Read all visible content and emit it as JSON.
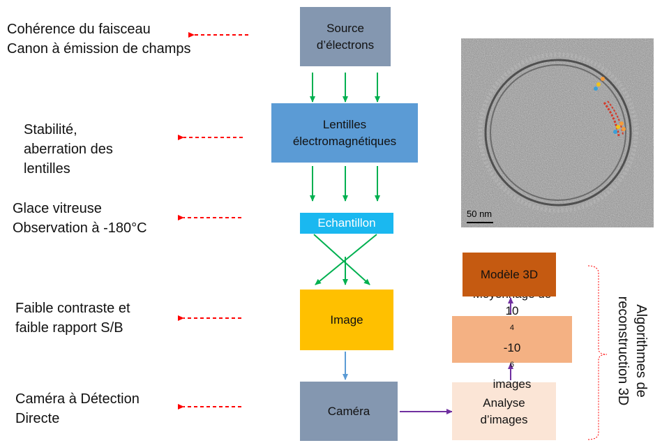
{
  "annotations": {
    "coherence": [
      "Cohérence du faisceau",
      "Canon à émission de champs"
    ],
    "stabilite": [
      "Stabilité,",
      "aberration des",
      "lentilles"
    ],
    "glace": [
      "Glace vitreuse",
      "Observation à -180°C"
    ],
    "contraste": [
      "Faible contraste et",
      "faible rapport S/B"
    ],
    "camera": [
      "Caméra à Détection",
      "Directe"
    ]
  },
  "boxes": {
    "source": [
      "Source",
      "d’électrons"
    ],
    "lentilles": [
      "Lentilles",
      "électromagnétiques"
    ],
    "echantillon": "Echantillon",
    "image": "Image",
    "camera": "Caméra",
    "analyse": [
      "Analyse",
      "d’images"
    ],
    "moyennage_line1": "Moyennage de",
    "moyennage_line2": {
      "a": "10",
      "a_sup": "4",
      "b": "-10",
      "b_sup": "6",
      "c": " images"
    },
    "modele": "Modèle 3D"
  },
  "bracket_label": [
    "Algorithmes de",
    "reconstruction 3D"
  ],
  "micrograph": {
    "scale_bar": "50 nm"
  },
  "colors": {
    "source": "#8497b0",
    "lentilles": "#5b9bd5",
    "echantillon": "#1ab8f0",
    "image": "#ffc000",
    "camera": "#8497b0",
    "analyse": "#fbe5d6",
    "moyennage": "#f4b183",
    "modele": "#c55a11",
    "green_arrows": "#00b050",
    "red_dashes": "#ff0000",
    "purple_arrows": "#7030a0",
    "blue_arrow": "#5b9bd5"
  }
}
